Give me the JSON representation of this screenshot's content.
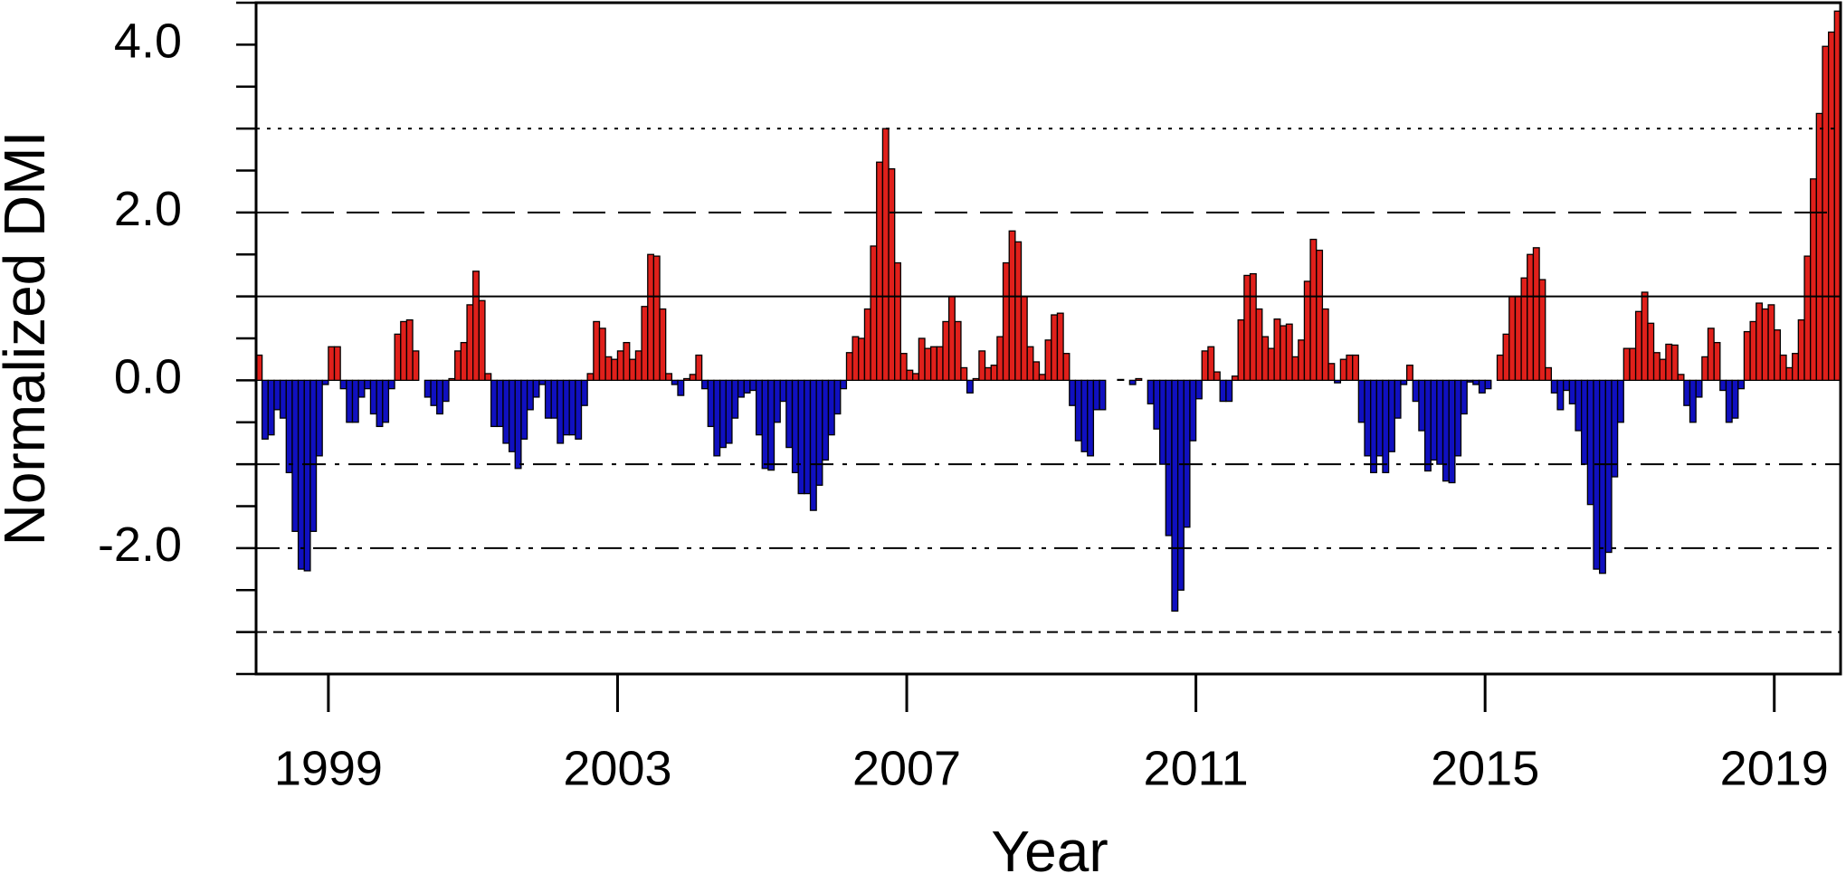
{
  "chart_data": {
    "type": "bar",
    "xlabel": "Year",
    "ylabel": "Normalized DMI",
    "positive_color": "#e0201b",
    "negative_color": "#1010c0",
    "xlim": [
      1998,
      2019.917
    ],
    "xticks": [
      1999,
      2003,
      2007,
      2011,
      2015,
      2019
    ],
    "ylim": [
      -3.5,
      4.5
    ],
    "yticks": [
      {
        "value": -2,
        "label": "-2.0"
      },
      {
        "value": 0,
        "label": "0.0"
      },
      {
        "value": 2,
        "label": "2.0"
      },
      {
        "value": 4,
        "label": "4.0"
      }
    ],
    "yminor_ticks": [
      -3.5,
      -3,
      -2.5,
      -1.5,
      -1,
      -0.5,
      0.5,
      1,
      1.5,
      2.5,
      3,
      3.5,
      4.5
    ],
    "reference_lines": [
      {
        "value": 3,
        "style": "dotted"
      },
      {
        "value": 2,
        "style": "dashed"
      },
      {
        "value": 1,
        "style": "solid"
      },
      {
        "value": -1,
        "style": "dash-dot"
      },
      {
        "value": -2,
        "style": "dash-dot-dot"
      },
      {
        "value": -3,
        "style": "short-dashed"
      }
    ],
    "x": [
      1998,
      1998.083,
      1998.167,
      1998.25,
      1998.333,
      1998.417,
      1998.5,
      1998.583,
      1998.667,
      1998.75,
      1998.833,
      1998.917,
      1999,
      1999.083,
      1999.167,
      1999.25,
      1999.333,
      1999.417,
      1999.5,
      1999.583,
      1999.667,
      1999.75,
      1999.833,
      1999.917,
      2000,
      2000.083,
      2000.167,
      2000.25,
      2000.333,
      2000.417,
      2000.5,
      2000.583,
      2000.667,
      2000.75,
      2000.833,
      2000.917,
      2001,
      2001.083,
      2001.167,
      2001.25,
      2001.333,
      2001.417,
      2001.5,
      2001.583,
      2001.667,
      2001.75,
      2001.833,
      2001.917,
      2002,
      2002.083,
      2002.167,
      2002.25,
      2002.333,
      2002.417,
      2002.5,
      2002.583,
      2002.667,
      2002.75,
      2002.833,
      2002.917,
      2003,
      2003.083,
      2003.167,
      2003.25,
      2003.333,
      2003.417,
      2003.5,
      2003.583,
      2003.667,
      2003.75,
      2003.833,
      2003.917,
      2004,
      2004.083,
      2004.167,
      2004.25,
      2004.333,
      2004.417,
      2004.5,
      2004.583,
      2004.667,
      2004.75,
      2004.833,
      2004.917,
      2005,
      2005.083,
      2005.167,
      2005.25,
      2005.333,
      2005.417,
      2005.5,
      2005.583,
      2005.667,
      2005.75,
      2005.833,
      2005.917,
      2006,
      2006.083,
      2006.167,
      2006.25,
      2006.333,
      2006.417,
      2006.5,
      2006.583,
      2006.667,
      2006.75,
      2006.833,
      2006.917,
      2007,
      2007.083,
      2007.167,
      2007.25,
      2007.333,
      2007.417,
      2007.5,
      2007.583,
      2007.667,
      2007.75,
      2007.833,
      2007.917,
      2008,
      2008.083,
      2008.167,
      2008.25,
      2008.333,
      2008.417,
      2008.5,
      2008.583,
      2008.667,
      2008.75,
      2008.833,
      2008.917,
      2009,
      2009.083,
      2009.167,
      2009.25,
      2009.333,
      2009.417,
      2009.5,
      2009.583,
      2009.667,
      2009.75,
      2009.833,
      2009.917,
      2010,
      2010.083,
      2010.167,
      2010.25,
      2010.333,
      2010.417,
      2010.5,
      2010.583,
      2010.667,
      2010.75,
      2010.833,
      2010.917,
      2011,
      2011.083,
      2011.167,
      2011.25,
      2011.333,
      2011.417,
      2011.5,
      2011.583,
      2011.667,
      2011.75,
      2011.833,
      2011.917,
      2012,
      2012.083,
      2012.167,
      2012.25,
      2012.333,
      2012.417,
      2012.5,
      2012.583,
      2012.667,
      2012.75,
      2012.833,
      2012.917,
      2013,
      2013.083,
      2013.167,
      2013.25,
      2013.333,
      2013.417,
      2013.5,
      2013.583,
      2013.667,
      2013.75,
      2013.833,
      2013.917,
      2014,
      2014.083,
      2014.167,
      2014.25,
      2014.333,
      2014.417,
      2014.5,
      2014.583,
      2014.667,
      2014.75,
      2014.833,
      2014.917,
      2015,
      2015.083,
      2015.167,
      2015.25,
      2015.333,
      2015.417,
      2015.5,
      2015.583,
      2015.667,
      2015.75,
      2015.833,
      2015.917,
      2016,
      2016.083,
      2016.167,
      2016.25,
      2016.333,
      2016.417,
      2016.5,
      2016.583,
      2016.667,
      2016.75,
      2016.833,
      2016.917,
      2017,
      2017.083,
      2017.167,
      2017.25,
      2017.333,
      2017.417,
      2017.5,
      2017.583,
      2017.667,
      2017.75,
      2017.833,
      2017.917,
      2018,
      2018.083,
      2018.167,
      2018.25,
      2018.333,
      2018.417,
      2018.5,
      2018.583,
      2018.667,
      2018.75,
      2018.833,
      2018.917,
      2019,
      2019.083,
      2019.167,
      2019.25,
      2019.333,
      2019.417,
      2019.5,
      2019.583,
      2019.667,
      2019.75,
      2019.833
    ],
    "values": [
      0.3,
      -0.7,
      -0.65,
      -0.35,
      -0.45,
      -1.1,
      -1.8,
      -2.25,
      -2.27,
      -1.8,
      -0.9,
      -0.05,
      0.4,
      0.4,
      -0.1,
      -0.5,
      -0.5,
      -0.2,
      -0.1,
      -0.4,
      -0.55,
      -0.5,
      -0.1,
      0.55,
      0.7,
      0.72,
      0.35,
      0,
      -0.2,
      -0.3,
      -0.4,
      -0.25,
      0.02,
      0.35,
      0.45,
      0.9,
      1.3,
      0.95,
      0.08,
      -0.55,
      -0.55,
      -0.75,
      -0.85,
      -1.05,
      -0.7,
      -0.35,
      -0.2,
      -0.05,
      -0.45,
      -0.45,
      -0.75,
      -0.65,
      -0.65,
      -0.7,
      -0.3,
      0.08,
      0.7,
      0.62,
      0.28,
      0.25,
      0.35,
      0.45,
      0.25,
      0.35,
      0.88,
      1.5,
      1.48,
      0.85,
      0.08,
      -0.05,
      -0.18,
      0.02,
      0.07,
      0.3,
      -0.1,
      -0.55,
      -0.9,
      -0.8,
      -0.75,
      -0.45,
      -0.2,
      -0.15,
      -0.12,
      -0.65,
      -1.05,
      -1.07,
      -0.5,
      -0.25,
      -0.8,
      -1.1,
      -1.35,
      -1.35,
      -1.55,
      -1.25,
      -0.95,
      -0.65,
      -0.4,
      -0.1,
      0.33,
      0.52,
      0.5,
      0.85,
      1.6,
      2.6,
      3.0,
      2.52,
      1.4,
      0.32,
      0.12,
      0.08,
      0.5,
      0.38,
      0.4,
      0.4,
      0.7,
      1.0,
      0.7,
      0.15,
      -0.15,
      0.02,
      0.35,
      0.15,
      0.18,
      0.52,
      1.4,
      1.78,
      1.65,
      1.0,
      0.4,
      0.22,
      0.07,
      0.48,
      0.78,
      0.8,
      0.32,
      -0.3,
      -0.72,
      -0.85,
      -0.9,
      -0.35,
      -0.35,
      0,
      0,
      0.01,
      0,
      -0.05,
      0.02,
      0,
      -0.28,
      -0.58,
      -1.0,
      -1.85,
      -2.75,
      -2.5,
      -1.75,
      -0.72,
      -0.22,
      0.35,
      0.4,
      0.1,
      -0.25,
      -0.25,
      0.05,
      0.72,
      1.25,
      1.27,
      0.85,
      0.52,
      0.38,
      0.73,
      0.65,
      0.67,
      0.28,
      0.48,
      1.18,
      1.68,
      1.55,
      0.85,
      0.2,
      -0.03,
      0.25,
      0.3,
      0.3,
      -0.5,
      -0.9,
      -1.1,
      -0.9,
      -1.1,
      -0.85,
      -0.45,
      -0.05,
      0.18,
      -0.25,
      -0.6,
      -1.08,
      -0.95,
      -1.0,
      -1.2,
      -1.22,
      -0.9,
      -0.4,
      -0.02,
      -0.05,
      -0.15,
      -0.1,
      0,
      0.3,
      0.55,
      1.0,
      1.0,
      1.22,
      1.5,
      1.58,
      1.2,
      0.15,
      -0.15,
      -0.35,
      -0.12,
      -0.28,
      -0.6,
      -1.0,
      -1.48,
      -2.25,
      -2.3,
      -2.05,
      -1.15,
      -0.5,
      0.38,
      0.38,
      0.82,
      1.05,
      0.68,
      0.33,
      0.25,
      0.43,
      0.42,
      0.07,
      -0.3,
      -0.5,
      -0.2,
      0.28,
      0.62,
      0.45,
      -0.12,
      -0.5,
      -0.45,
      -0.1,
      0.58,
      0.7,
      0.92,
      0.85,
      0.9,
      0.6,
      0.3,
      0.15,
      0.32,
      0.72,
      1.48,
      2.4,
      3.18,
      3.98,
      4.15,
      4.4
    ]
  }
}
